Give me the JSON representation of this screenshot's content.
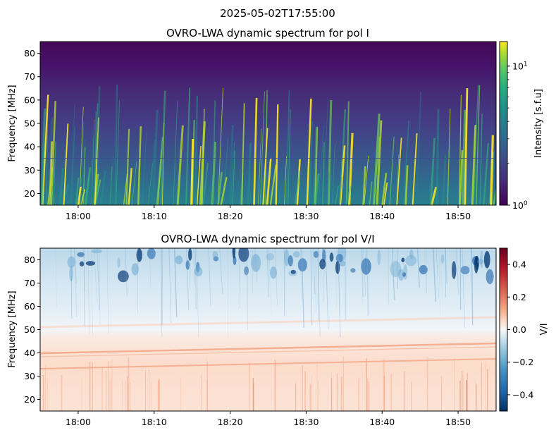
{
  "figure": {
    "suptitle": "2025-05-02T17:55:00"
  },
  "chart_data": [
    {
      "type": "heatmap",
      "title": "OVRO-LWA dynamic spectrum for pol I",
      "ylabel": "Frequency [MHz]",
      "xlabel": "",
      "x_range": [
        "17:55",
        "18:55"
      ],
      "xticks": [
        "18:00",
        "18:10",
        "18:20",
        "18:30",
        "18:40",
        "18:50"
      ],
      "ylim": [
        15,
        85
      ],
      "yticks": [
        20,
        30,
        40,
        50,
        60,
        70,
        80
      ],
      "colormap": "viridis",
      "color_scale": "log",
      "colorbar": {
        "label": "Intensity [s.f.u]",
        "range": [
          1,
          15
        ],
        "tick_labels": [
          {
            "base": "10",
            "exp": "0",
            "value": 1
          },
          {
            "base": "10",
            "exp": "1",
            "value": 10
          }
        ]
      }
    },
    {
      "type": "heatmap",
      "title": "OVRO-LWA dynamic spectrum for pol V/I",
      "ylabel": "Frequency [MHz]",
      "xlabel": "",
      "x_range": [
        "17:55",
        "18:55"
      ],
      "xticks": [
        "18:00",
        "18:10",
        "18:20",
        "18:30",
        "18:40",
        "18:50"
      ],
      "ylim": [
        15,
        85
      ],
      "yticks": [
        20,
        30,
        40,
        50,
        60,
        70,
        80
      ],
      "colormap": "RdBu_r",
      "color_scale": "linear",
      "colorbar": {
        "label": "V/I",
        "range": [
          -0.5,
          0.5
        ],
        "ticks": [
          0.4,
          0.2,
          0.0,
          -0.2,
          -0.4
        ],
        "tick_labels": [
          "0.4",
          "0.2",
          "0.0",
          "−0.2",
          "−0.4"
        ]
      }
    }
  ]
}
